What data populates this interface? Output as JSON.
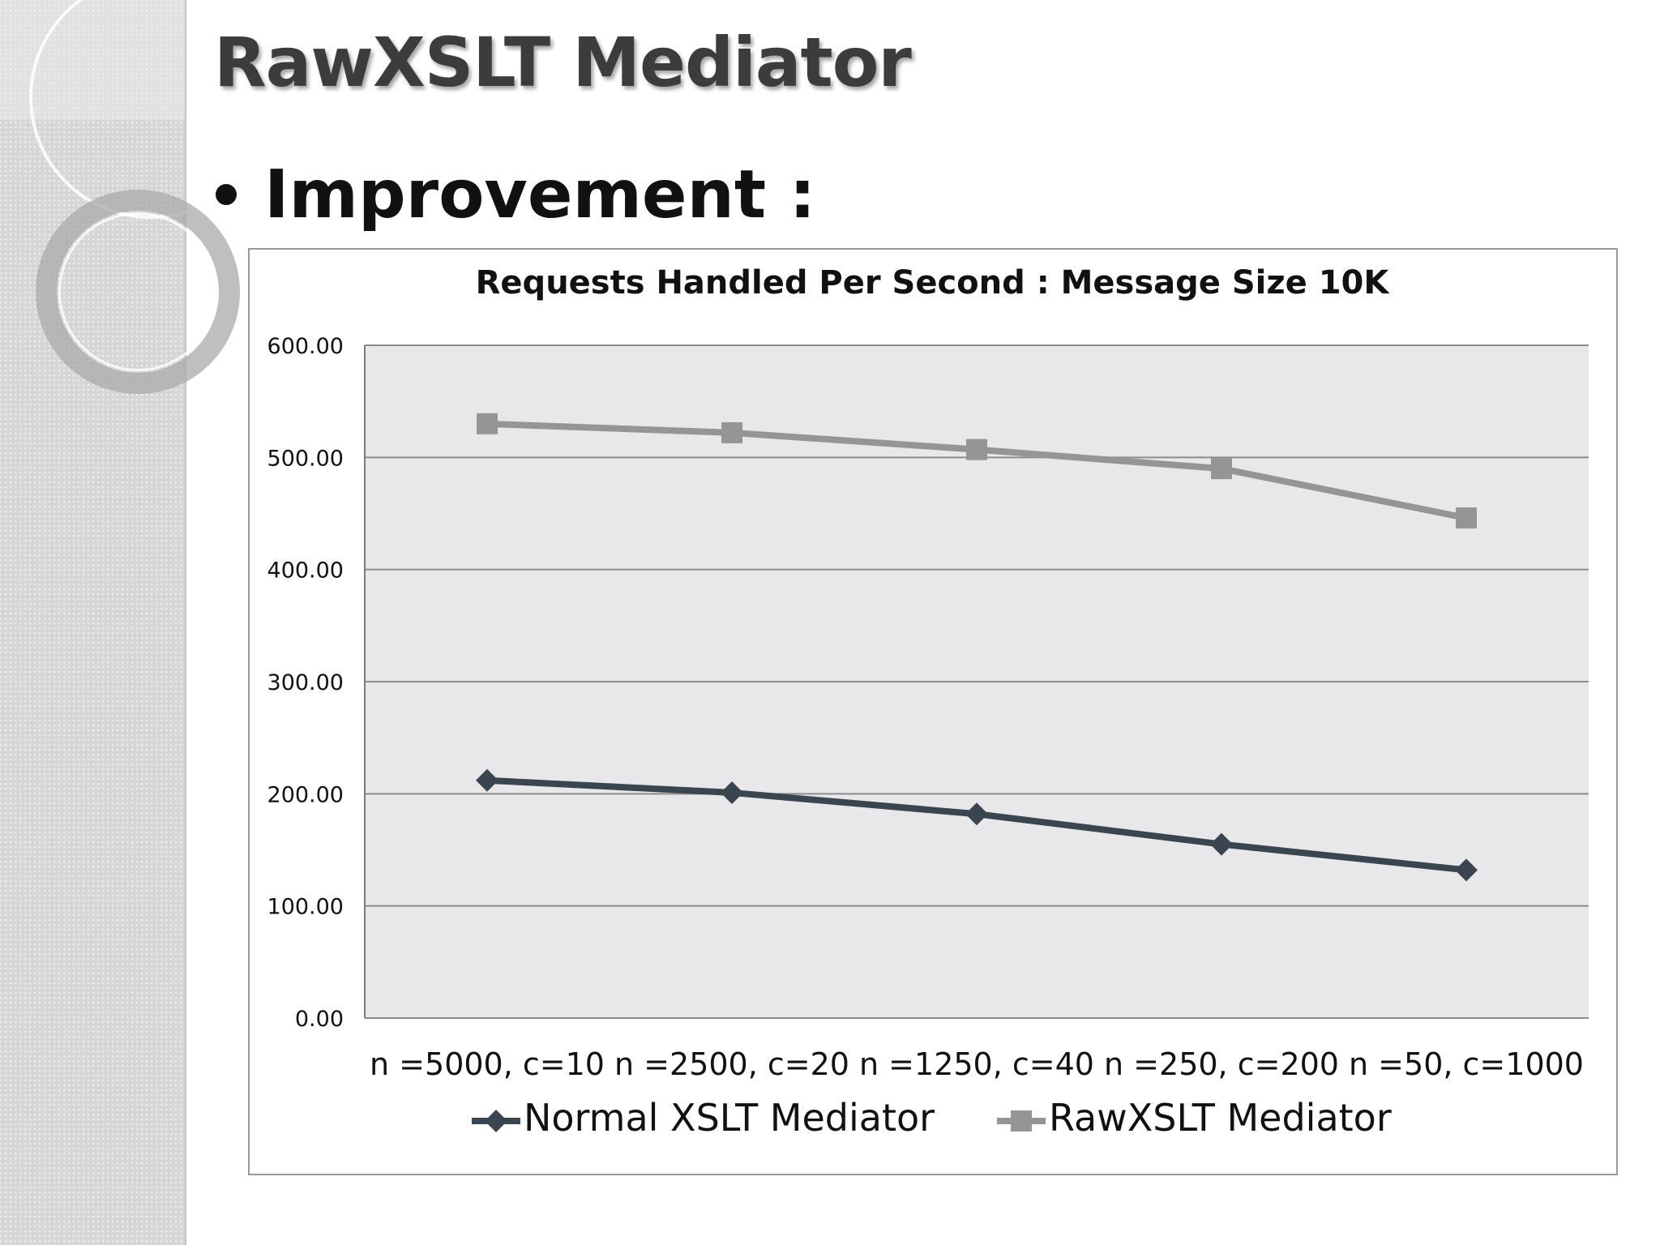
{
  "slide": {
    "title": "RawXSLT Mediator",
    "bullet": "Improvement :"
  },
  "colors": {
    "background": "#ffffff",
    "sidebar": "#d6d6d8",
    "plot_area": "#e8e8ea",
    "gridline": "#8c8c8c",
    "title_text": "#3c3c3c",
    "normal_series": "#3b4550",
    "raw_series": "#959595"
  },
  "icons": {
    "bullet": "bullet-dot-icon",
    "normal_marker": "diamond-icon",
    "raw_marker": "square-icon"
  },
  "chart_data": {
    "type": "line",
    "title": "Requests Handled Per Second : Message Size 10K",
    "xlabel": "",
    "ylabel": "",
    "categories": [
      "n =5000, c=10",
      "n =2500, c=20",
      "n =1250, c=40",
      "n =250, c=200",
      "n =50, c=1000"
    ],
    "ylim": [
      0,
      600
    ],
    "yticks": [
      "0.00",
      "100.00",
      "200.00",
      "300.00",
      "400.00",
      "500.00",
      "600.00"
    ],
    "grid": true,
    "legend_position": "bottom",
    "series": [
      {
        "name": "Normal XSLT Mediator",
        "values": [
          212,
          201,
          182,
          155,
          132
        ],
        "color": "#3b4550",
        "marker": "diamond"
      },
      {
        "name": "RawXSLT Mediator",
        "values": [
          530,
          522,
          507,
          490,
          446
        ],
        "color": "#959595",
        "marker": "square"
      }
    ]
  }
}
